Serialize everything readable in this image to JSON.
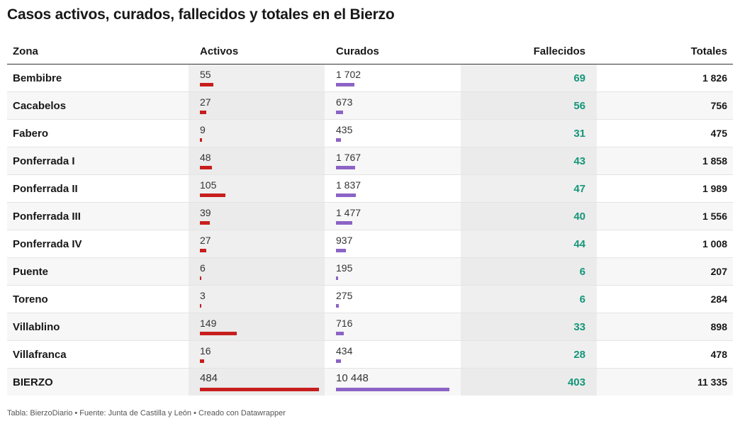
{
  "title": "Casos activos, curados, fallecidos y totales en el Bierzo",
  "footer": "Tabla: BierzoDiario • Fuente: Junta de Castilla y León • Creado con Datawrapper",
  "colors": {
    "activos_bar": "#c71e1d",
    "curados_bar": "#8c63c6",
    "fallecidos_text": "#15967a"
  },
  "chart_data": {
    "type": "table",
    "title": "Casos activos, curados, fallecidos y totales en el Bierzo",
    "columns": [
      "Zona",
      "Activos",
      "Curados",
      "Fallecidos",
      "Totales"
    ],
    "bar_columns": [
      "Activos",
      "Curados"
    ],
    "bar_max": {
      "activos": 484,
      "curados": 10448
    },
    "rows": [
      {
        "zona": "Bembibre",
        "activos": 55,
        "activos_label": "55",
        "curados": 1702,
        "curados_label": "1 702",
        "fallecidos": "69",
        "totales": "1 826"
      },
      {
        "zona": "Cacabelos",
        "activos": 27,
        "activos_label": "27",
        "curados": 673,
        "curados_label": "673",
        "fallecidos": "56",
        "totales": "756"
      },
      {
        "zona": "Fabero",
        "activos": 9,
        "activos_label": "9",
        "curados": 435,
        "curados_label": "435",
        "fallecidos": "31",
        "totales": "475"
      },
      {
        "zona": "Ponferrada I",
        "activos": 48,
        "activos_label": "48",
        "curados": 1767,
        "curados_label": "1 767",
        "fallecidos": "43",
        "totales": "1 858"
      },
      {
        "zona": "Ponferrada II",
        "activos": 105,
        "activos_label": "105",
        "curados": 1837,
        "curados_label": "1 837",
        "fallecidos": "47",
        "totales": "1 989"
      },
      {
        "zona": "Ponferrada III",
        "activos": 39,
        "activos_label": "39",
        "curados": 1477,
        "curados_label": "1 477",
        "fallecidos": "40",
        "totales": "1 556"
      },
      {
        "zona": "Ponferrada IV",
        "activos": 27,
        "activos_label": "27",
        "curados": 937,
        "curados_label": "937",
        "fallecidos": "44",
        "totales": "1 008"
      },
      {
        "zona": "Puente",
        "activos": 6,
        "activos_label": "6",
        "curados": 195,
        "curados_label": "195",
        "fallecidos": "6",
        "totales": "207"
      },
      {
        "zona": "Toreno",
        "activos": 3,
        "activos_label": "3",
        "curados": 275,
        "curados_label": "275",
        "fallecidos": "6",
        "totales": "284"
      },
      {
        "zona": "Villablino",
        "activos": 149,
        "activos_label": "149",
        "curados": 716,
        "curados_label": "716",
        "fallecidos": "33",
        "totales": "898"
      },
      {
        "zona": "Villafranca",
        "activos": 16,
        "activos_label": "16",
        "curados": 434,
        "curados_label": "434",
        "fallecidos": "28",
        "totales": "478"
      },
      {
        "zona": "BIERZO",
        "activos": 484,
        "activos_label": "484",
        "curados": 10448,
        "curados_label": "10 448",
        "fallecidos": "403",
        "totales": "11 335"
      }
    ]
  }
}
